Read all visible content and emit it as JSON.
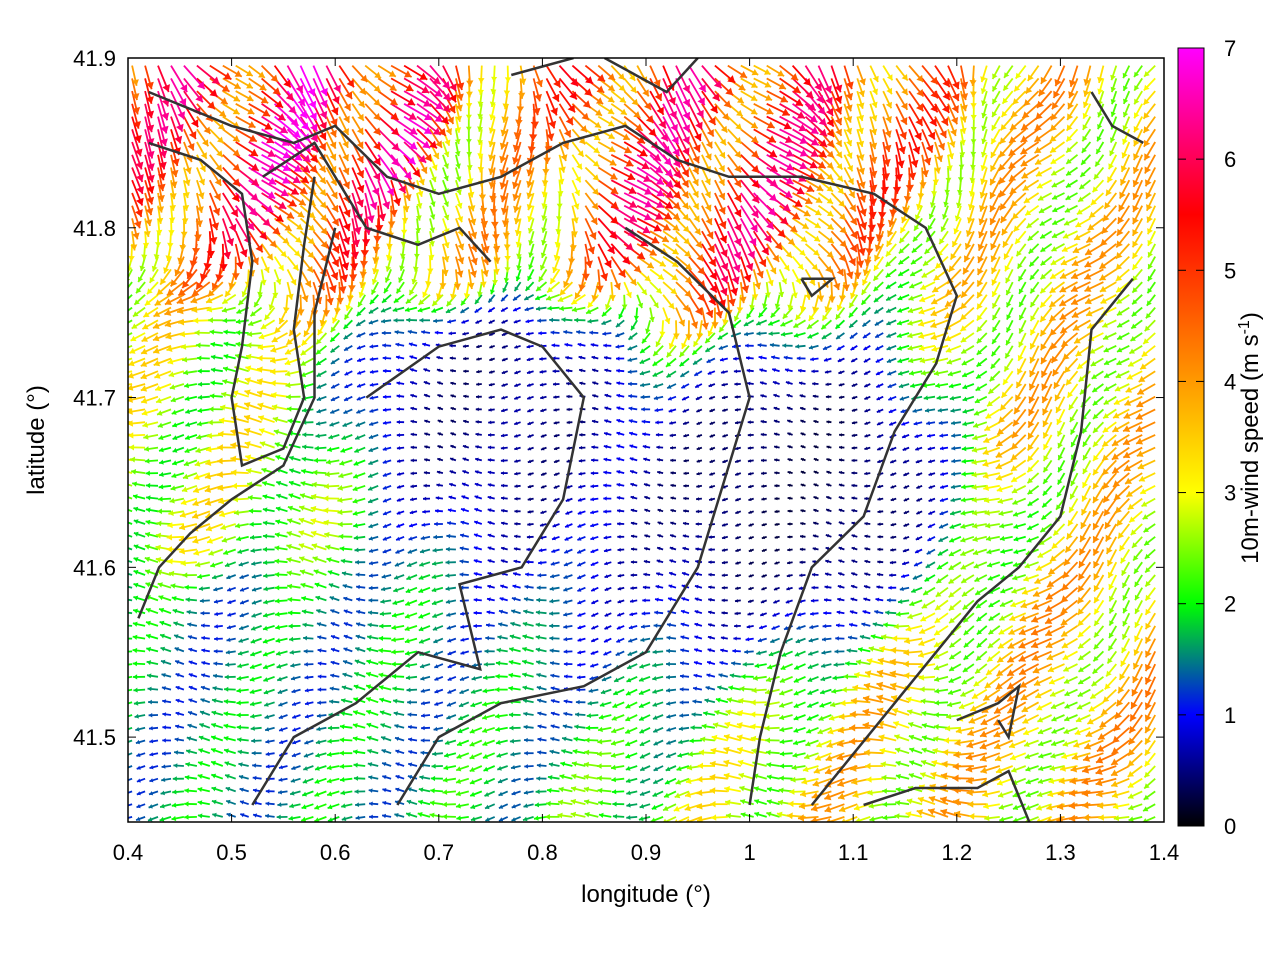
{
  "chart_data": {
    "type": "vector-field",
    "xlabel": "longitude (°)",
    "ylabel": "latitude (°)",
    "colorbar_label": "10m-wind speed (m s-1)",
    "colorbar_label_parts": {
      "main": "10m-wind speed (m s",
      "sup": "-1",
      "end": ")"
    },
    "xlim": [
      0.4,
      1.4
    ],
    "ylim": [
      41.45,
      41.9
    ],
    "x_ticks": [
      "0.4",
      "0.5",
      "0.6",
      "0.7",
      "0.8",
      "0.9",
      "1",
      "1.1",
      "1.2",
      "1.3",
      "1.4"
    ],
    "y_ticks": [
      "41.5",
      "41.6",
      "41.7",
      "41.8",
      "41.9"
    ],
    "colorbar_range": [
      0,
      7
    ],
    "colorbar_ticks": [
      "0",
      "1",
      "2",
      "3",
      "4",
      "5",
      "6",
      "7"
    ],
    "colormap": [
      "#000000",
      "#0000ff",
      "#00ff00",
      "#ffff00",
      "#ff0000",
      "#ff00ff"
    ],
    "colormap_stops": [
      0,
      1,
      2,
      3,
      5.5,
      7
    ],
    "contour_color": "#333333",
    "grid": false,
    "wind_regions": [
      {
        "lon": 0.62,
        "lat": 41.86,
        "speed": 6.5,
        "dir": "southeast"
      },
      {
        "lon": 0.93,
        "lat": 41.84,
        "speed": 6.0,
        "dir": "southeast"
      },
      {
        "lon": 0.72,
        "lat": 41.83,
        "speed": 4.0,
        "dir": "south"
      },
      {
        "lon": 0.48,
        "lat": 41.65,
        "speed": 3.2,
        "dir": "west"
      },
      {
        "lon": 1.35,
        "lat": 41.72,
        "speed": 3.8,
        "dir": "southwest"
      },
      {
        "lon": 1.37,
        "lat": 41.54,
        "speed": 4.0,
        "dir": "southwest"
      },
      {
        "lon": 1.2,
        "lat": 41.47,
        "speed": 3.8,
        "dir": "west"
      },
      {
        "lon": 0.75,
        "lat": 41.7,
        "speed": 0.6,
        "dir": "west"
      },
      {
        "lon": 1.05,
        "lat": 41.65,
        "speed": 0.4,
        "dir": "west"
      },
      {
        "lon": 0.5,
        "lat": 41.55,
        "speed": 1.8,
        "dir": "west"
      }
    ],
    "contours": [
      [
        [
          0.42,
          41.88
        ],
        [
          0.5,
          41.86
        ],
        [
          0.56,
          41.85
        ],
        [
          0.6,
          41.86
        ],
        [
          0.65,
          41.83
        ],
        [
          0.7,
          41.82
        ],
        [
          0.76,
          41.83
        ],
        [
          0.82,
          41.85
        ],
        [
          0.88,
          41.86
        ],
        [
          0.93,
          41.84
        ],
        [
          0.98,
          41.83
        ],
        [
          1.05,
          41.83
        ],
        [
          1.12,
          41.82
        ],
        [
          1.17,
          41.8
        ],
        [
          1.2,
          41.76
        ],
        [
          1.18,
          41.72
        ],
        [
          1.14,
          41.68
        ],
        [
          1.11,
          41.63
        ],
        [
          1.06,
          41.6
        ],
        [
          1.03,
          41.55
        ],
        [
          1.01,
          41.5
        ],
        [
          1.0,
          41.46
        ]
      ],
      [
        [
          0.42,
          41.85
        ],
        [
          0.47,
          41.84
        ],
        [
          0.51,
          41.82
        ],
        [
          0.52,
          41.78
        ],
        [
          0.51,
          41.73
        ],
        [
          0.5,
          41.7
        ],
        [
          0.51,
          41.66
        ],
        [
          0.55,
          41.67
        ],
        [
          0.57,
          41.7
        ],
        [
          0.56,
          41.74
        ],
        [
          0.57,
          41.79
        ],
        [
          0.58,
          41.83
        ]
      ],
      [
        [
          0.53,
          41.83
        ],
        [
          0.58,
          41.85
        ],
        [
          0.63,
          41.8
        ],
        [
          0.68,
          41.79
        ],
        [
          0.72,
          41.8
        ],
        [
          0.75,
          41.78
        ]
      ],
      [
        [
          0.6,
          41.8
        ],
        [
          0.58,
          41.75
        ],
        [
          0.58,
          41.7
        ],
        [
          0.55,
          41.66
        ],
        [
          0.5,
          41.64
        ],
        [
          0.46,
          41.62
        ],
        [
          0.43,
          41.6
        ],
        [
          0.41,
          41.57
        ]
      ],
      [
        [
          0.63,
          41.7
        ],
        [
          0.7,
          41.73
        ],
        [
          0.76,
          41.74
        ],
        [
          0.8,
          41.73
        ],
        [
          0.84,
          41.7
        ],
        [
          0.82,
          41.64
        ],
        [
          0.78,
          41.6
        ],
        [
          0.72,
          41.59
        ],
        [
          0.74,
          41.54
        ],
        [
          0.68,
          41.55
        ],
        [
          0.62,
          41.52
        ],
        [
          0.56,
          41.5
        ],
        [
          0.52,
          41.46
        ]
      ],
      [
        [
          0.66,
          41.46
        ],
        [
          0.7,
          41.5
        ],
        [
          0.76,
          41.52
        ],
        [
          0.84,
          41.53
        ],
        [
          0.9,
          41.55
        ],
        [
          0.95,
          41.6
        ],
        [
          0.98,
          41.66
        ],
        [
          1.0,
          41.7
        ],
        [
          0.98,
          41.75
        ],
        [
          0.93,
          41.78
        ],
        [
          0.88,
          41.8
        ]
      ],
      [
        [
          1.37,
          41.77
        ],
        [
          1.33,
          41.74
        ],
        [
          1.32,
          41.68
        ],
        [
          1.3,
          41.63
        ],
        [
          1.26,
          41.6
        ],
        [
          1.22,
          41.58
        ],
        [
          1.18,
          41.55
        ],
        [
          1.14,
          41.52
        ],
        [
          1.1,
          41.49
        ],
        [
          1.06,
          41.46
        ]
      ],
      [
        [
          1.11,
          41.46
        ],
        [
          1.16,
          41.47
        ],
        [
          1.22,
          41.47
        ],
        [
          1.25,
          41.48
        ],
        [
          1.27,
          41.45
        ]
      ],
      [
        [
          1.2,
          41.51
        ],
        [
          1.24,
          41.52
        ],
        [
          1.26,
          41.53
        ],
        [
          1.25,
          41.5
        ],
        [
          1.24,
          41.51
        ]
      ],
      [
        [
          1.05,
          41.77
        ],
        [
          1.08,
          41.77
        ],
        [
          1.06,
          41.76
        ],
        [
          1.05,
          41.77
        ]
      ],
      [
        [
          1.33,
          41.88
        ],
        [
          1.35,
          41.86
        ],
        [
          1.38,
          41.85
        ]
      ],
      [
        [
          0.77,
          41.89
        ],
        [
          0.83,
          41.9
        ]
      ],
      [
        [
          0.86,
          41.9
        ],
        [
          0.92,
          41.88
        ],
        [
          0.95,
          41.9
        ]
      ]
    ]
  }
}
